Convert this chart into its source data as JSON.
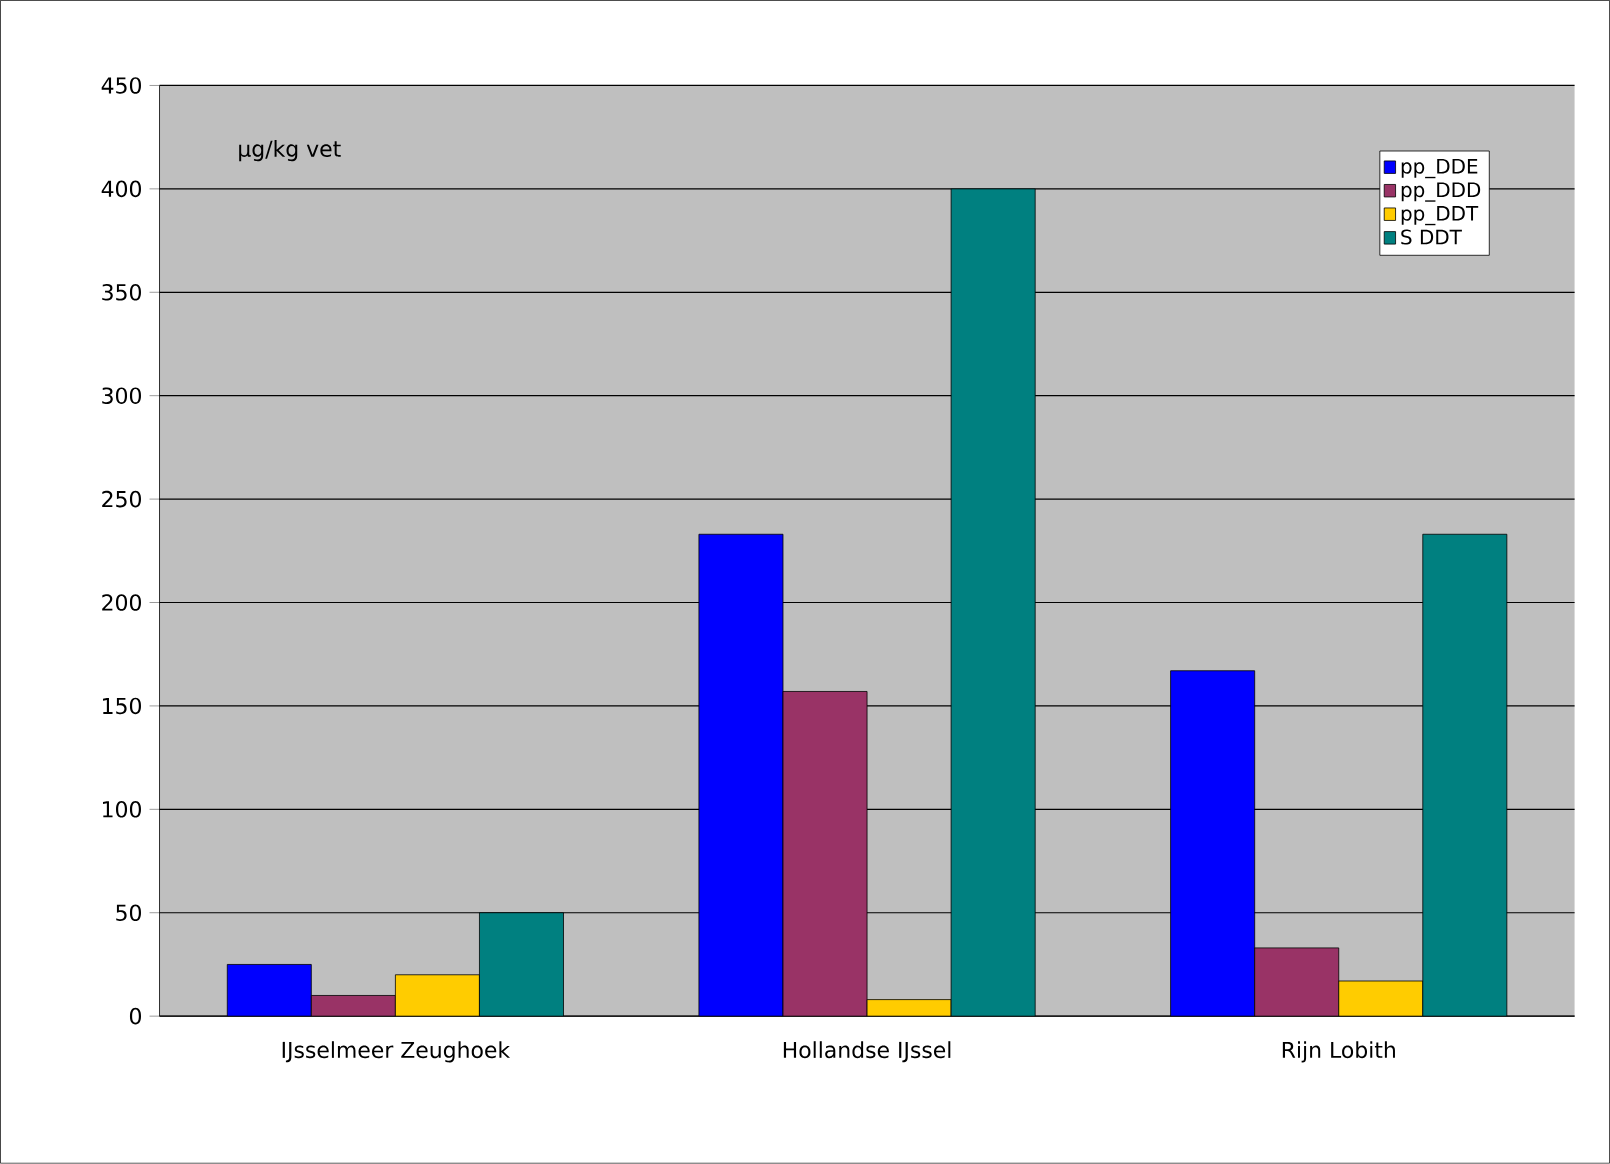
{
  "chart_data": {
    "type": "bar",
    "categories": [
      "IJsselmeer Zeughoek",
      "Hollandse IJssel",
      "Rijn Lobith"
    ],
    "series": [
      {
        "name": "pp_DDE",
        "color": "#0000ff",
        "values": [
          25,
          233,
          167
        ]
      },
      {
        "name": "pp_DDD",
        "color": "#993366",
        "values": [
          10,
          157,
          33
        ]
      },
      {
        "name": "pp_DDT",
        "color": "#ffcc00",
        "values": [
          20,
          8,
          17
        ]
      },
      {
        "name": "S DDT",
        "color": "#008080",
        "values": [
          50,
          400,
          233
        ]
      }
    ],
    "ylim": [
      0,
      450
    ],
    "yticks": [
      0,
      50,
      100,
      150,
      200,
      250,
      300,
      350,
      400,
      450
    ],
    "grid": "y",
    "legend": "top right",
    "annotations": [
      "µg/kg vet"
    ]
  }
}
